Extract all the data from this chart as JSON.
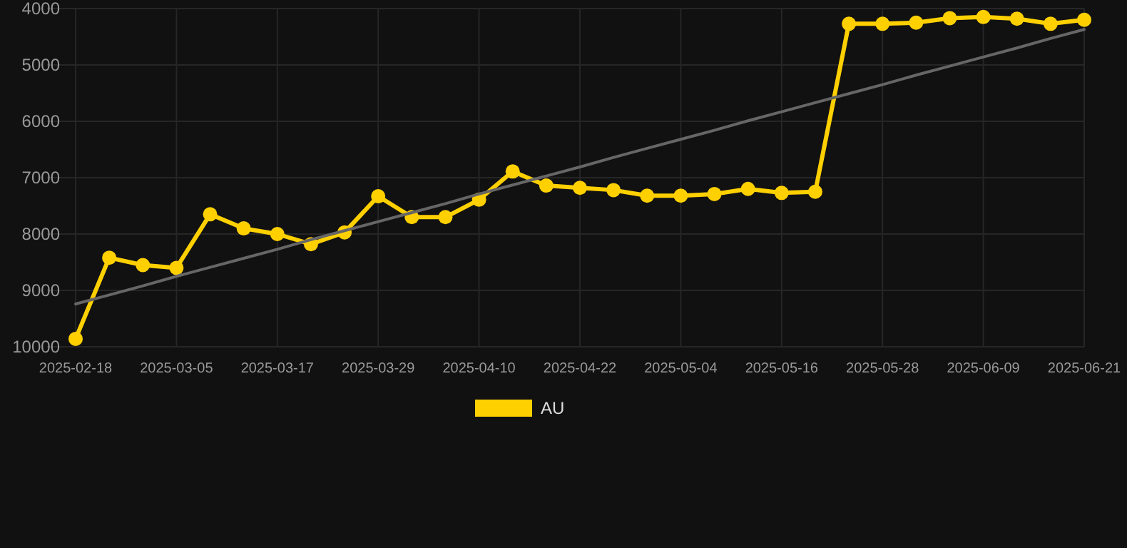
{
  "chart_data": {
    "type": "line",
    "categories": [
      "2025-02-18",
      null,
      null,
      "2025-03-05",
      null,
      null,
      "2025-03-17",
      null,
      null,
      "2025-03-29",
      null,
      null,
      "2025-04-10",
      null,
      null,
      "2025-04-22",
      null,
      null,
      "2025-05-04",
      null,
      null,
      "2025-05-16",
      null,
      null,
      "2025-05-28",
      null,
      null,
      "2025-06-09",
      null,
      null,
      "2025-06-21"
    ],
    "series": [
      {
        "name": "AU",
        "color": "#ffd000",
        "values": [
          9860,
          8420,
          8550,
          8600,
          7650,
          7900,
          8000,
          8180,
          7970,
          7330,
          7700,
          7700,
          7390,
          6890,
          7140,
          7180,
          7220,
          7320,
          7320,
          7290,
          7200,
          7270,
          7250,
          4270,
          4270,
          4250,
          4170,
          4150,
          4180,
          4270,
          4200
        ]
      },
      {
        "type": "line",
        "color": "#666666",
        "marker": "none",
        "values": [
          9240,
          9080,
          8920,
          8750,
          8590,
          8430,
          8270,
          8100,
          7940,
          7780,
          7620,
          7460,
          7290,
          7130,
          6970,
          6810,
          6640,
          6480,
          6320,
          6160,
          5990,
          5830,
          5670,
          5510,
          5350,
          5180,
          5020,
          4860,
          4700,
          4530,
          4370
        ]
      }
    ],
    "ylim": [
      10000,
      4000
    ],
    "yticks": [
      4000,
      5000,
      6000,
      7000,
      8000,
      9000,
      10000
    ],
    "grid": true,
    "legend": "bottom",
    "marker": "circle",
    "line_style": "solid"
  }
}
